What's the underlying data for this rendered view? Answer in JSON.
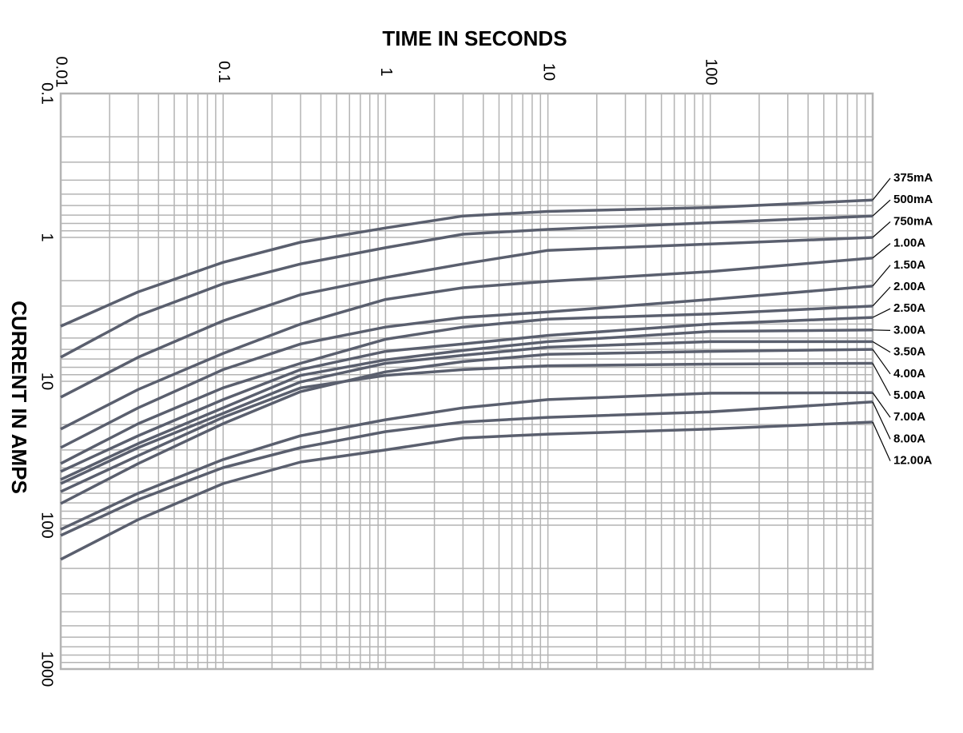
{
  "chart_data": {
    "type": "line",
    "title": "TIME IN SECONDS",
    "y_label": "CURRENT IN AMPS",
    "xscale": "log",
    "yscale": "log",
    "y_inverted": true,
    "x_axis_position": "top",
    "grid": true,
    "legend": "right",
    "line_color": "#5a5f6e",
    "grid_color": "#b4b4b4",
    "xlim": [
      0.01,
      1000
    ],
    "xticks": [
      0.01,
      0.1,
      1,
      10,
      100
    ],
    "ylim": [
      0.1,
      1000
    ],
    "yticks": [
      0.1,
      1,
      10,
      100,
      1000
    ],
    "x_minor_ticks": [
      0.02,
      0.03,
      0.04,
      0.05,
      0.06,
      0.07,
      0.08,
      0.09,
      0.2,
      0.3,
      0.4,
      0.5,
      0.6,
      0.7,
      0.8,
      0.9,
      2,
      3,
      4,
      5,
      6,
      7,
      8,
      9,
      20,
      30,
      40,
      50,
      60,
      70,
      80,
      90,
      200,
      300,
      400,
      500,
      600,
      700,
      800,
      900
    ],
    "y_minor_ticks": [
      0.2,
      0.3,
      0.4,
      0.5,
      0.6,
      0.7,
      0.8,
      0.9,
      2,
      3,
      4,
      5,
      6,
      7,
      8,
      9,
      20,
      30,
      40,
      50,
      60,
      70,
      80,
      90,
      200,
      300,
      400,
      500,
      600,
      700,
      800,
      900
    ],
    "x": [
      0.01,
      0.03,
      0.1,
      0.3,
      1,
      3,
      10,
      100,
      1000
    ],
    "series": [
      {
        "name": "375mA",
        "values": [
          4.14,
          2.39,
          1.49,
          1.08,
          0.86,
          0.71,
          0.66,
          0.62,
          0.55
        ]
      },
      {
        "name": "500mA",
        "values": [
          6.8,
          3.5,
          2.1,
          1.53,
          1.18,
          0.95,
          0.88,
          0.79,
          0.71
        ]
      },
      {
        "name": "750mA",
        "values": [
          12.9,
          6.8,
          3.8,
          2.5,
          1.9,
          1.53,
          1.23,
          1.11,
          1.0
        ]
      },
      {
        "name": "1.00A",
        "values": [
          21.5,
          11.4,
          6.4,
          4.0,
          2.7,
          2.24,
          2.02,
          1.73,
          1.39
        ]
      },
      {
        "name": "1.50A",
        "values": [
          28.9,
          15.3,
          8.3,
          5.5,
          4.2,
          3.6,
          3.3,
          2.7,
          2.18
        ]
      },
      {
        "name": "2.00A",
        "values": [
          37.3,
          19.7,
          11.1,
          7.5,
          5.1,
          4.2,
          3.7,
          3.4,
          3.0
        ]
      },
      {
        "name": "2.50A",
        "values": [
          42.4,
          23.9,
          13.4,
          8.3,
          6.2,
          5.5,
          4.8,
          4.0,
          3.6
        ]
      },
      {
        "name": "3.00A",
        "values": [
          48.2,
          27.1,
          15.3,
          9.1,
          7.1,
          6.1,
          5.3,
          4.5,
          4.4
        ]
      },
      {
        "name": "3.50A",
        "values": [
          51.4,
          28.9,
          16.7,
          10.1,
          7.5,
          6.6,
          5.8,
          5.3,
          5.3
        ]
      },
      {
        "name": "4.00A",
        "values": [
          70.8,
          37.3,
          19.7,
          11.8,
          8.6,
          7.3,
          6.5,
          6.2,
          6.0
        ]
      },
      {
        "name": "5.00A",
        "values": [
          58.5,
          32.9,
          17.8,
          11.1,
          9.1,
          8.3,
          7.8,
          7.6,
          7.5
        ]
      },
      {
        "name": "7.00A",
        "values": [
          107,
          60,
          35.0,
          23.9,
          18.5,
          15.3,
          13.4,
          12.1,
          12.0
        ]
      },
      {
        "name": "8.00A",
        "values": [
          118,
          66.4,
          39.8,
          28.9,
          22.4,
          19.2,
          17.8,
          16.3,
          13.9
        ]
      },
      {
        "name": "12.00A",
        "values": [
          173,
          91.4,
          51.4,
          36.4,
          30.0,
          24.8,
          23.3,
          21.5,
          19.2
        ]
      }
    ]
  }
}
